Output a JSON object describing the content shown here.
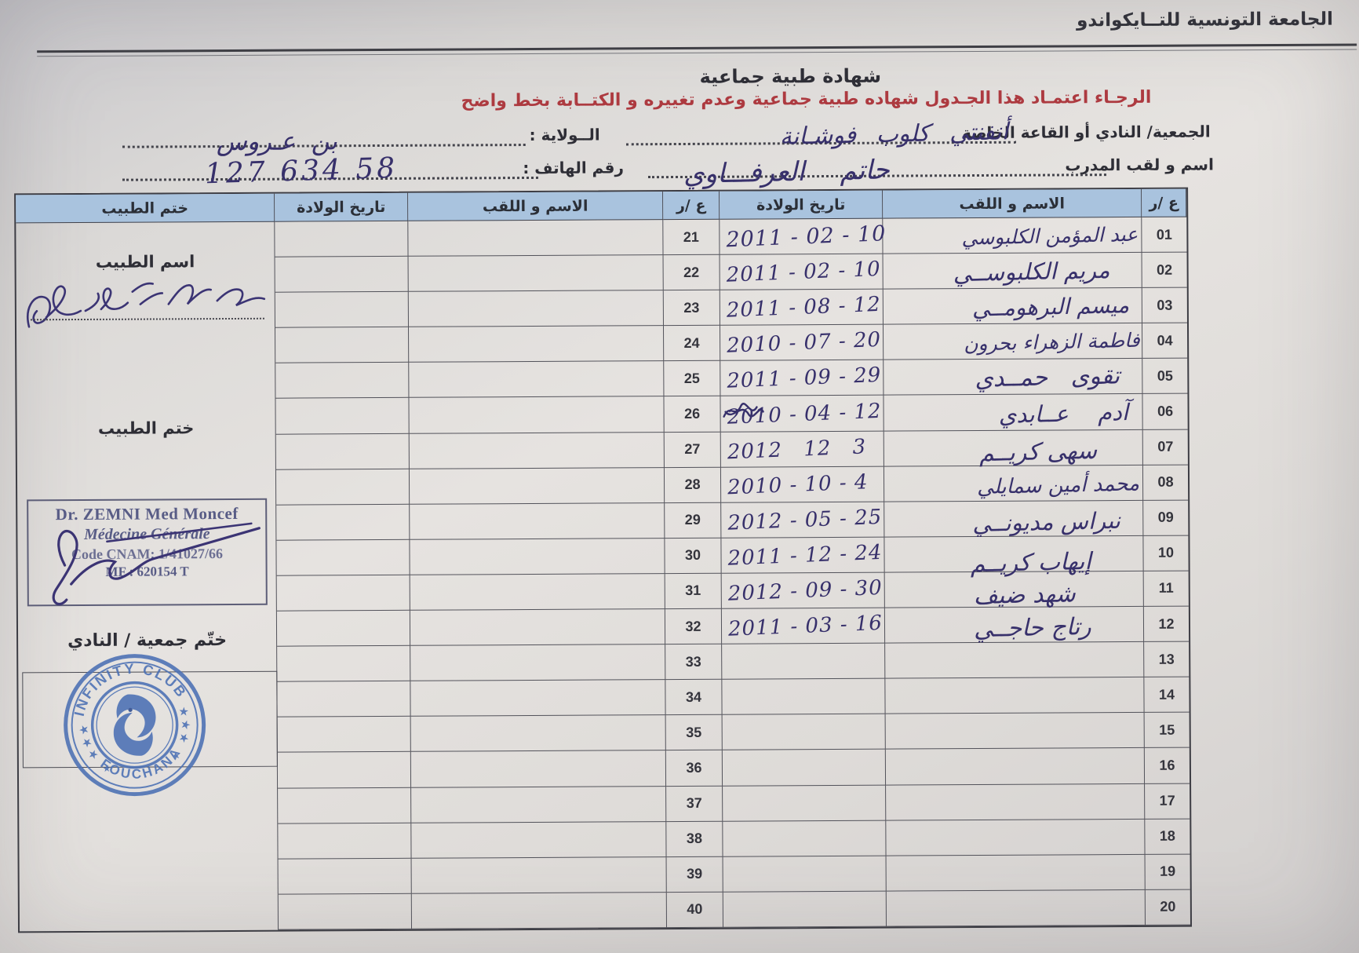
{
  "page": {
    "federation": "الجامعة التونسية للتــايكواندو",
    "title": "شهادة طبية جماعية",
    "notice": "الرجـاء اعتمـاد هذا الجـدول  شهاده طبية جماعية وعدم تغييره و الكتــابة بخط واضح"
  },
  "form": {
    "club_label": "الجمعية/ النادي أو القاعة الخاصة",
    "club_value": "أنفنتي كلوب فوشـانة",
    "wilaya_label": "الــولاية :",
    "wilaya_value": "بن عـروس",
    "coach_label": "اسم و لقب المدرب",
    "coach_value": "حاتم العرفـــاوي",
    "phone_label": "رقم الهاتف :",
    "phone_value": "58 634 127"
  },
  "table": {
    "headers": {
      "num": "ع /ر",
      "name": "الاسم و اللقب",
      "dob": "تاريخ الولادة",
      "doctor": "ختم الطبيب"
    },
    "right_rows": [
      {
        "num": "01",
        "name": "عبد المؤمن الكلبوسي",
        "dob": "2011 - 02 - 10"
      },
      {
        "num": "02",
        "name": "مريم الكلبوســي",
        "dob": "2011 - 02 - 10"
      },
      {
        "num": "03",
        "name": "ميسم البرهومــي",
        "dob": "2011 - 08 - 12"
      },
      {
        "num": "04",
        "name": "فاطمة الزهراء بحرون",
        "dob": "2010 - 07 - 20"
      },
      {
        "num": "05",
        "name": "تقوى حمــدي",
        "dob": "2011 - 09 - 29"
      },
      {
        "num": "06",
        "name": "آدم عــابدي",
        "dob": "2010 - 04 - 12"
      },
      {
        "num": "07",
        "name": "سهى كريــم",
        "dob": "2012  12 3"
      },
      {
        "num": "08",
        "name": "محمد أمين سمايلي",
        "dob": "2010 - 10 - 4"
      },
      {
        "num": "09",
        "name": "نبراس مديونــي",
        "dob": "2012 - 05 - 25"
      },
      {
        "num": "10",
        "name": "إيهاب كريــم",
        "dob": "2011 - 12 - 24"
      },
      {
        "num": "11",
        "name": "شهد ضيف",
        "dob": "2012 - 09 - 30"
      },
      {
        "num": "12",
        "name": "رتاج حاجــي",
        "dob": "2011 - 03 - 16"
      },
      {
        "num": "13",
        "name": "",
        "dob": ""
      },
      {
        "num": "14",
        "name": "",
        "dob": ""
      },
      {
        "num": "15",
        "name": "",
        "dob": ""
      },
      {
        "num": "16",
        "name": "",
        "dob": ""
      },
      {
        "num": "17",
        "name": "",
        "dob": ""
      },
      {
        "num": "18",
        "name": "",
        "dob": ""
      },
      {
        "num": "19",
        "name": "",
        "dob": ""
      },
      {
        "num": "20",
        "name": "",
        "dob": ""
      }
    ],
    "left_rows": [
      {
        "num": "21"
      },
      {
        "num": "22"
      },
      {
        "num": "23"
      },
      {
        "num": "24"
      },
      {
        "num": "25"
      },
      {
        "num": "26"
      },
      {
        "num": "27"
      },
      {
        "num": "28"
      },
      {
        "num": "29"
      },
      {
        "num": "30"
      },
      {
        "num": "31"
      },
      {
        "num": "32"
      },
      {
        "num": "33"
      },
      {
        "num": "34"
      },
      {
        "num": "35"
      },
      {
        "num": "36"
      },
      {
        "num": "37"
      },
      {
        "num": "38"
      },
      {
        "num": "39"
      },
      {
        "num": "40"
      }
    ]
  },
  "doctor_panel": {
    "name_label": "اسم الطبيب",
    "stamp_label": "ختم الطبيب",
    "club_stamp_label": "ختّم جمعية / النادي",
    "stamp": {
      "line1": "Dr. ZEMNI Med Moncef",
      "line2": "Médecine Générale",
      "line3": "Code CNAM: 1/41027/66",
      "line4": "MF : 620154 T"
    },
    "club_stamp": {
      "top": "INFINITY CLUB",
      "bottom": "FOUCHANA"
    }
  },
  "icons": {
    "star": "★"
  },
  "colors": {
    "header_fill": "#a9c3de",
    "notice_red": "#ad3a40",
    "ink_blue": "#37306b",
    "stamp_blue": "#4b70b4",
    "doctor_stamp_ink": "#585c86"
  }
}
